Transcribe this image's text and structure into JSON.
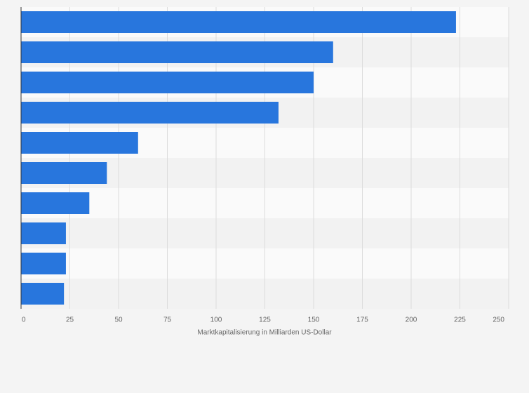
{
  "chart_data": {
    "type": "bar",
    "orientation": "horizontal",
    "categories": [
      null,
      null,
      null,
      null,
      null,
      null,
      null,
      null,
      null,
      null
    ],
    "values": [
      223,
      160,
      150,
      132,
      60,
      44,
      35,
      23,
      23,
      22
    ],
    "color": "#2876dd",
    "xlabel": "Marktkapitalisierung in Milliarden US-Dollar",
    "xlim": [
      0,
      250
    ],
    "xticks": [
      0,
      25,
      50,
      75,
      100,
      125,
      150,
      175,
      200,
      225,
      250
    ],
    "grid": true
  }
}
